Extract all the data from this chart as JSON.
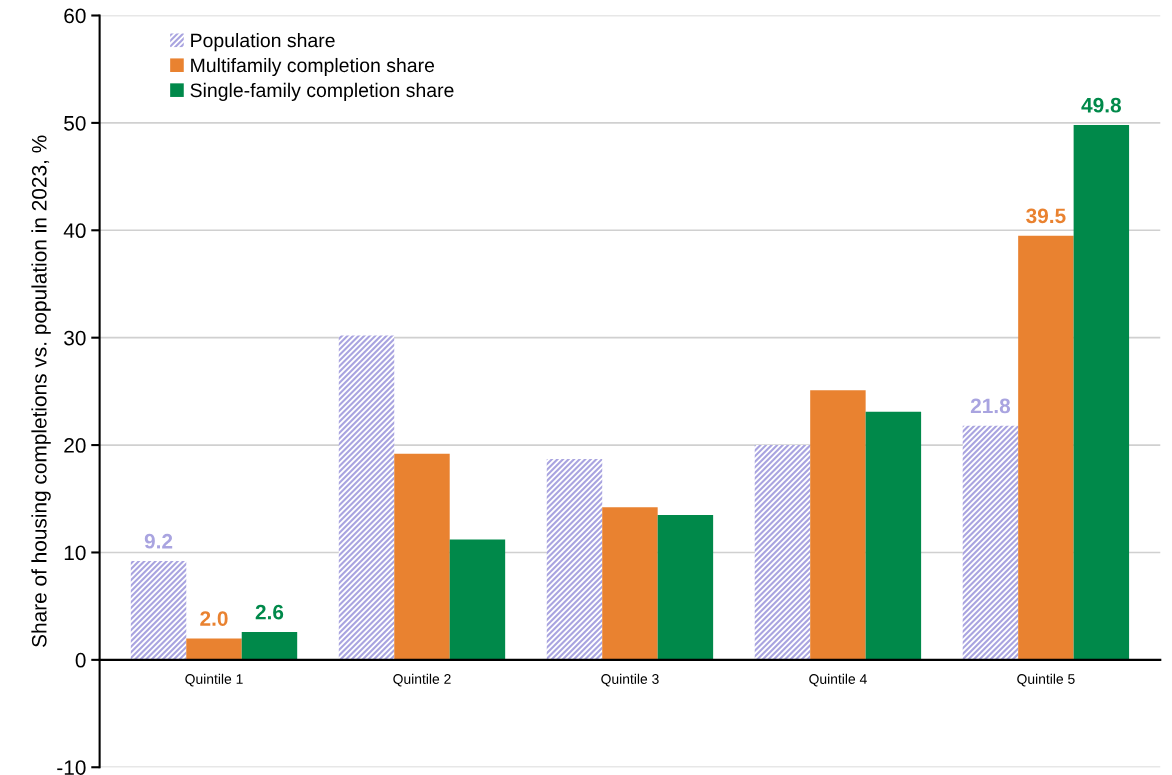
{
  "chart_data": {
    "type": "bar",
    "ylabel": "Share of housing completions vs. population in 2023, %",
    "categories": [
      "Quintile 1",
      "Quintile 2",
      "Quintile 3",
      "Quintile 4",
      "Quintile 5"
    ],
    "series": [
      {
        "name": "Population share",
        "color": "#a9a4e0",
        "values": [
          9.2,
          30.2,
          18.7,
          20.0,
          21.8
        ],
        "value_labels": [
          "9.2",
          null,
          null,
          null,
          "21.8"
        ]
      },
      {
        "name": "Multifamily completion share",
        "color": "#e98230",
        "values": [
          2.0,
          19.2,
          14.2,
          25.1,
          39.5
        ],
        "value_labels": [
          "2.0",
          null,
          null,
          null,
          "39.5"
        ]
      },
      {
        "name": "Single-family completion share",
        "color": "#00894a",
        "values": [
          2.6,
          11.2,
          13.5,
          23.1,
          49.8
        ],
        "value_labels": [
          "2.6",
          null,
          null,
          null,
          "49.8"
        ]
      }
    ],
    "ylim": [
      -10,
      60
    ],
    "yticks": [
      -10,
      0,
      10,
      20,
      30,
      40,
      50,
      60
    ],
    "grid": "y",
    "legend": "top left"
  }
}
